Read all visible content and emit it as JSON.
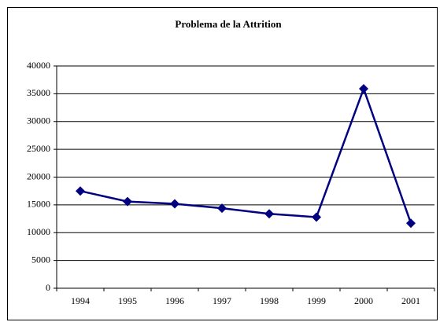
{
  "chart_data": {
    "type": "line",
    "title": "Problema de la Attrition",
    "categories": [
      "1994",
      "1995",
      "1996",
      "1997",
      "1998",
      "1999",
      "2000",
      "2001"
    ],
    "values": [
      17500,
      15600,
      15200,
      14400,
      13400,
      12800,
      35900,
      11700
    ],
    "color": "#000080",
    "ylim": [
      0,
      40000
    ],
    "yticks": [
      0,
      5000,
      10000,
      15000,
      20000,
      25000,
      30000,
      35000,
      40000
    ],
    "grid": true
  }
}
